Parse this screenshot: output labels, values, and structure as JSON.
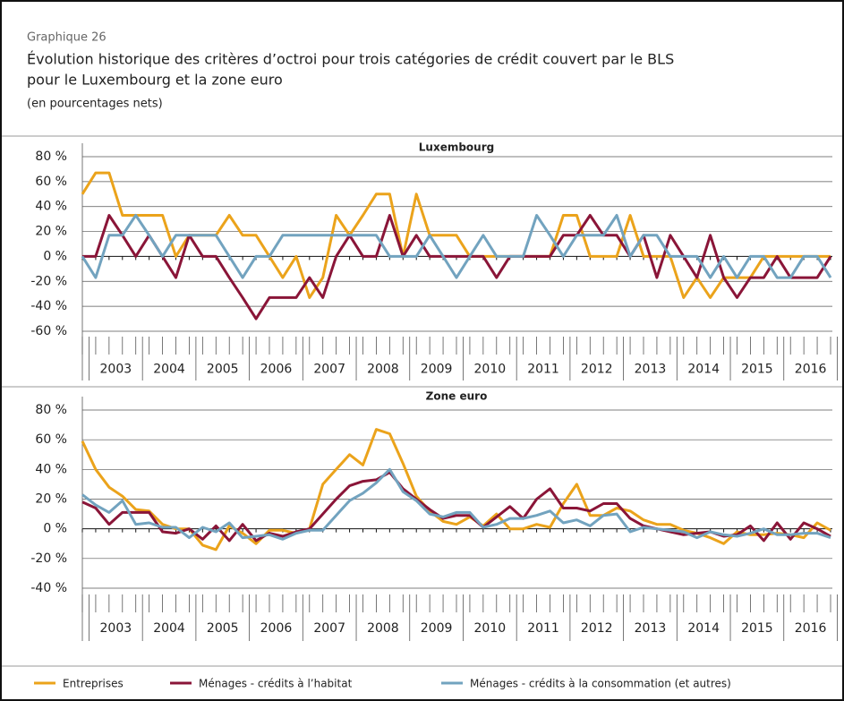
{
  "header": {
    "label": "Graphique 26",
    "title": [
      "Évolution historique des critères d’octroi pour trois catégories de crédit couvert par le BLS",
      "pour le Luxembourg et la zone euro"
    ],
    "subtitle": "(en pourcentages nets)"
  },
  "chart_data": [
    {
      "type": "line",
      "title": "Luxembourg",
      "categories": [
        null,
        "2003",
        null,
        null,
        null,
        "2004",
        null,
        null,
        null,
        "2005",
        null,
        null,
        null,
        "2006",
        null,
        null,
        null,
        "2007",
        null,
        null,
        null,
        "2008",
        null,
        null,
        null,
        "2009",
        null,
        null,
        null,
        "2010",
        null,
        null,
        null,
        "2011",
        null,
        null,
        null,
        "2012",
        null,
        null,
        null,
        "2013",
        null,
        null,
        null,
        "2014",
        null,
        null,
        null,
        "2015",
        null,
        null,
        null,
        "2016",
        null,
        null,
        null
      ],
      "ylim": [
        -60,
        80
      ],
      "yticks": [
        {
          "value": -60,
          "label": "-60 %"
        },
        {
          "value": -40,
          "label": "-40 %"
        },
        {
          "value": -20,
          "label": "-20 %"
        },
        {
          "value": 0,
          "label": "0 %"
        },
        {
          "value": 20,
          "label": "20 %"
        },
        {
          "value": 40,
          "label": "40 %"
        },
        {
          "value": 60,
          "label": "60 %"
        },
        {
          "value": 80,
          "label": "80 %"
        }
      ],
      "grid": true,
      "series": [
        {
          "name": "Entreprises",
          "color": "#eba31b",
          "values": [
            50,
            67,
            67,
            33,
            33,
            33,
            33,
            0,
            17,
            17,
            17,
            33,
            17,
            17,
            0,
            -17,
            0,
            -33,
            -17,
            33,
            17,
            33,
            50,
            50,
            0,
            50,
            17,
            17,
            17,
            0,
            0,
            0,
            0,
            0,
            0,
            0,
            33,
            33,
            0,
            0,
            0,
            33,
            0,
            0,
            0,
            -33,
            -17,
            -33,
            -17,
            -17,
            -17,
            0,
            0,
            0,
            0,
            0,
            0
          ]
        },
        {
          "name": "Ménages - crédits à l’habitat",
          "color": "#8a1538",
          "values": [
            0,
            0,
            33,
            17,
            0,
            17,
            0,
            -17,
            17,
            0,
            0,
            -17,
            -33,
            -50,
            -33,
            -33,
            -33,
            -17,
            -33,
            0,
            17,
            0,
            0,
            33,
            0,
            17,
            0,
            0,
            0,
            0,
            0,
            -17,
            0,
            0,
            0,
            0,
            17,
            17,
            33,
            17,
            17,
            0,
            17,
            -17,
            17,
            0,
            -17,
            17,
            -17,
            -33,
            -17,
            -17,
            0,
            -17,
            -17,
            -17,
            0
          ]
        },
        {
          "name": "Ménages - crédits à la consommation (et autres)",
          "color": "#72a3bf",
          "values": [
            0,
            -17,
            17,
            17,
            33,
            17,
            0,
            17,
            17,
            17,
            17,
            0,
            -17,
            0,
            0,
            17,
            17,
            17,
            17,
            17,
            17,
            17,
            17,
            0,
            0,
            0,
            17,
            0,
            -17,
            0,
            17,
            0,
            0,
            0,
            33,
            17,
            0,
            17,
            17,
            17,
            33,
            0,
            17,
            17,
            0,
            0,
            0,
            -17,
            0,
            -17,
            0,
            0,
            -17,
            -17,
            0,
            0,
            -17
          ]
        }
      ]
    },
    {
      "type": "line",
      "title": "Zone euro",
      "categories": [
        null,
        "2003",
        null,
        null,
        null,
        "2004",
        null,
        null,
        null,
        "2005",
        null,
        null,
        null,
        "2006",
        null,
        null,
        null,
        "2007",
        null,
        null,
        null,
        "2008",
        null,
        null,
        null,
        "2009",
        null,
        null,
        null,
        "2010",
        null,
        null,
        null,
        "2011",
        null,
        null,
        null,
        "2012",
        null,
        null,
        null,
        "2013",
        null,
        null,
        null,
        "2014",
        null,
        null,
        null,
        "2015",
        null,
        null,
        null,
        "2016",
        null,
        null,
        null
      ],
      "ylim": [
        -40,
        80
      ],
      "yticks": [
        {
          "value": -40,
          "label": "-40 %"
        },
        {
          "value": -20,
          "label": "-20 %"
        },
        {
          "value": 0,
          "label": "0 %"
        },
        {
          "value": 20,
          "label": "20 %"
        },
        {
          "value": 40,
          "label": "40 %"
        },
        {
          "value": 60,
          "label": "60 %"
        },
        {
          "value": 80,
          "label": "80 %"
        }
      ],
      "grid": true,
      "series": [
        {
          "color": "#eba31b",
          "values": [
            59,
            40,
            28,
            22,
            13,
            12,
            3,
            0,
            0,
            -11,
            -14,
            2,
            -3,
            -10,
            -1,
            -1,
            -3,
            0,
            30,
            40,
            50,
            43,
            67,
            64,
            44,
            22,
            12,
            5,
            3,
            8,
            2,
            10,
            0,
            0,
            3,
            1,
            17,
            30,
            9,
            9,
            14,
            12,
            6,
            3,
            3,
            -1,
            -3,
            -6,
            -10,
            -2,
            -4,
            -4,
            -3,
            -4,
            -6,
            4,
            -1
          ]
        },
        {
          "color": "#8a1538",
          "values": [
            18,
            14,
            3,
            11,
            11,
            11,
            -2,
            -3,
            0,
            -7,
            2,
            -8,
            3,
            -8,
            -3,
            -5,
            -2,
            0,
            10,
            20,
            29,
            32,
            33,
            38,
            27,
            20,
            13,
            7,
            9,
            9,
            1,
            8,
            15,
            7,
            20,
            27,
            14,
            14,
            12,
            17,
            17,
            7,
            2,
            0,
            -2,
            -4,
            -3,
            -2,
            -5,
            -4,
            2,
            -8,
            4,
            -7,
            4,
            0,
            -5
          ]
        },
        {
          "color": "#72a3bf",
          "values": [
            23,
            16,
            11,
            19,
            3,
            4,
            1,
            1,
            -6,
            1,
            -2,
            4,
            -6,
            -5,
            -4,
            -7,
            -3,
            -1,
            -1,
            9,
            19,
            24,
            31,
            40,
            25,
            19,
            10,
            8,
            11,
            11,
            1,
            3,
            7,
            7,
            9,
            12,
            4,
            6,
            2,
            9,
            10,
            -2,
            1,
            0,
            -1,
            -2,
            -6,
            -2,
            -4,
            -5,
            -3,
            0,
            -4,
            -4,
            -3,
            -3,
            -6
          ]
        }
      ]
    }
  ]
}
